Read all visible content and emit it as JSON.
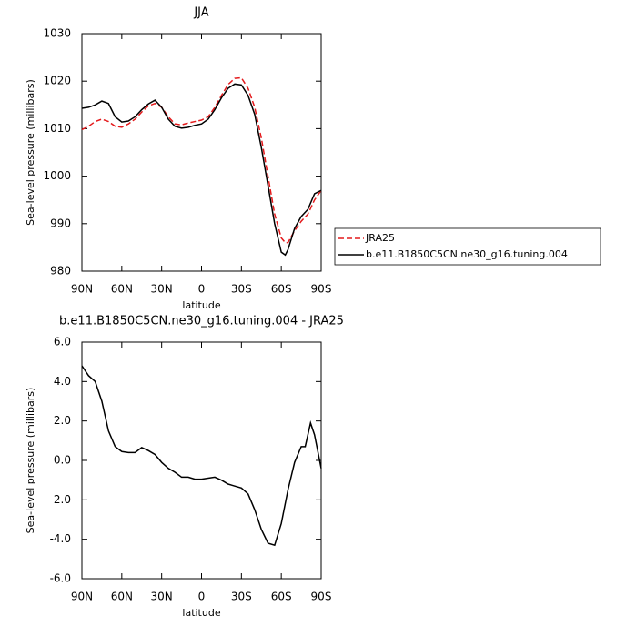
{
  "chart_data": [
    {
      "type": "line",
      "title": "JJA",
      "xlabel": "latitude",
      "ylabel": "Sea-level pressure (millibars)",
      "x": [
        90,
        85,
        80,
        75,
        70,
        65,
        60,
        55,
        50,
        45,
        40,
        35,
        30,
        25,
        20,
        15,
        10,
        5,
        0,
        -5,
        -10,
        -15,
        -20,
        -25,
        -30,
        -35,
        -40,
        -45,
        -50,
        -55,
        -60,
        -63,
        -65,
        -70,
        -75,
        -80,
        -85,
        -90
      ],
      "series": [
        {
          "name": "JRA25",
          "color": "#e41a1c",
          "style": "dashed",
          "values": [
            1009.8,
            1010.5,
            1011.5,
            1012,
            1011.5,
            1010.5,
            1010.3,
            1011,
            1012,
            1013.5,
            1014.8,
            1015.3,
            1014.5,
            1012.5,
            1011,
            1010.8,
            1011.2,
            1011.5,
            1011.8,
            1012.5,
            1014.5,
            1017,
            1019.3,
            1020.6,
            1020.7,
            1018.5,
            1014.5,
            1008,
            1000,
            992,
            987,
            986,
            986,
            988.5,
            990.5,
            992,
            995,
            997
          ]
        },
        {
          "name": "b.e11.B1850C5CN.ne30_g16.tuning.004",
          "color": "#000000",
          "style": "solid",
          "values": [
            1014.3,
            1014.5,
            1015,
            1015.8,
            1015.3,
            1012.5,
            1011.4,
            1011.6,
            1012.5,
            1014,
            1015.2,
            1016,
            1014.5,
            1012,
            1010.5,
            1010.1,
            1010.3,
            1010.7,
            1011,
            1012,
            1014,
            1016.5,
            1018.5,
            1019.4,
            1019.2,
            1017,
            1013,
            1006,
            998,
            990,
            984,
            983.4,
            984.5,
            989,
            991.5,
            993,
            996.3,
            997
          ]
        }
      ],
      "xlim": [
        90,
        -90
      ],
      "xticks": [
        {
          "value": 90,
          "label": "90N"
        },
        {
          "value": 60,
          "label": "60N"
        },
        {
          "value": 30,
          "label": "30N"
        },
        0,
        {
          "value": -30,
          "label": "30S"
        },
        {
          "value": -60,
          "label": "60S"
        },
        {
          "value": -90,
          "label": "90S"
        }
      ],
      "ylim": [
        980,
        1030
      ],
      "yticks": [
        980,
        990,
        1000,
        1010,
        1020,
        1030
      ],
      "legend": "right"
    },
    {
      "type": "line",
      "title": "b.e11.B1850C5CN.ne30_g16.tuning.004 - JRA25",
      "xlabel": "latitude",
      "ylabel": "Sea-level pressure (millibars)",
      "x": [
        90,
        85,
        80,
        75,
        70,
        65,
        60,
        55,
        50,
        45,
        40,
        35,
        30,
        25,
        20,
        15,
        10,
        5,
        0,
        -5,
        -10,
        -15,
        -20,
        -25,
        -30,
        -35,
        -40,
        -45,
        -50,
        -55,
        -60,
        -65,
        -70,
        -75,
        -78,
        -82,
        -85,
        -90
      ],
      "series": [
        {
          "color": "#000000",
          "style": "solid",
          "values": [
            4.8,
            4.3,
            4.0,
            3.0,
            1.5,
            0.7,
            0.45,
            0.4,
            0.4,
            0.65,
            0.5,
            0.3,
            -0.1,
            -0.4,
            -0.6,
            -0.85,
            -0.85,
            -0.95,
            -0.95,
            -0.9,
            -0.85,
            -1.0,
            -1.2,
            -1.3,
            -1.4,
            -1.7,
            -2.5,
            -3.5,
            -4.2,
            -4.3,
            -3.2,
            -1.5,
            -0.1,
            0.7,
            0.7,
            1.9,
            1.3,
            -0.4
          ]
        }
      ],
      "xlim": [
        90,
        -90
      ],
      "xticks": [
        {
          "value": 90,
          "label": "90N"
        },
        {
          "value": 60,
          "label": "60N"
        },
        {
          "value": 30,
          "label": "30N"
        },
        0,
        {
          "value": -30,
          "label": "30S"
        },
        {
          "value": -60,
          "label": "60S"
        },
        {
          "value": -90,
          "label": "90S"
        }
      ],
      "ylim": [
        -6,
        6
      ],
      "yticks": [
        {
          "value": -6,
          "label": "-6.0"
        },
        {
          "value": -4,
          "label": "-4.0"
        },
        {
          "value": -2,
          "label": "-2.0"
        },
        {
          "value": 0,
          "label": "0.0"
        },
        {
          "value": 2,
          "label": "2.0"
        },
        {
          "value": 4,
          "label": "4.0"
        },
        {
          "value": 6,
          "label": "6.0"
        }
      ]
    }
  ]
}
